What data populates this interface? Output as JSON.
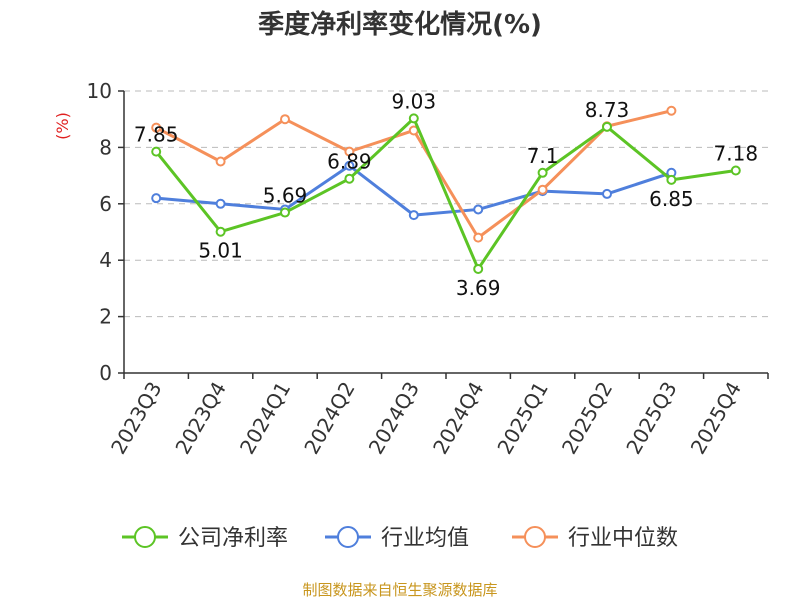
{
  "chart_data": {
    "type": "line",
    "title": "季度净利率变化情况(%)",
    "ylabel": "(%)",
    "xlabel": "",
    "ylim": [
      0,
      10
    ],
    "yticks": [
      0,
      2,
      4,
      6,
      8,
      10
    ],
    "grid": "horizontal-dashed",
    "legend_position": "bottom",
    "categories": [
      "2023Q3",
      "2023Q4",
      "2024Q1",
      "2024Q2",
      "2024Q3",
      "2024Q4",
      "2025Q1",
      "2025Q2",
      "2025Q3",
      "2025Q4"
    ],
    "series": [
      {
        "name": "公司净利率",
        "color": "#5cc425",
        "values": [
          7.85,
          5.01,
          5.69,
          6.89,
          9.03,
          3.69,
          7.1,
          8.73,
          6.85,
          7.18
        ],
        "labels": [
          "7.85",
          "5.01",
          "5.69",
          "6.89",
          "9.03",
          "3.69",
          "7.1",
          "8.73",
          "6.85",
          "7.18"
        ]
      },
      {
        "name": "行业均值",
        "color": "#4f7fdc",
        "values": [
          6.2,
          6.0,
          5.8,
          7.35,
          5.6,
          5.8,
          6.45,
          6.35,
          7.1,
          null
        ]
      },
      {
        "name": "行业中位数",
        "color": "#f5905a",
        "values": [
          8.7,
          7.5,
          9.0,
          7.85,
          8.6,
          4.8,
          6.5,
          8.75,
          9.3,
          null
        ]
      }
    ],
    "source": "制图数据来自恒生聚源数据库"
  }
}
